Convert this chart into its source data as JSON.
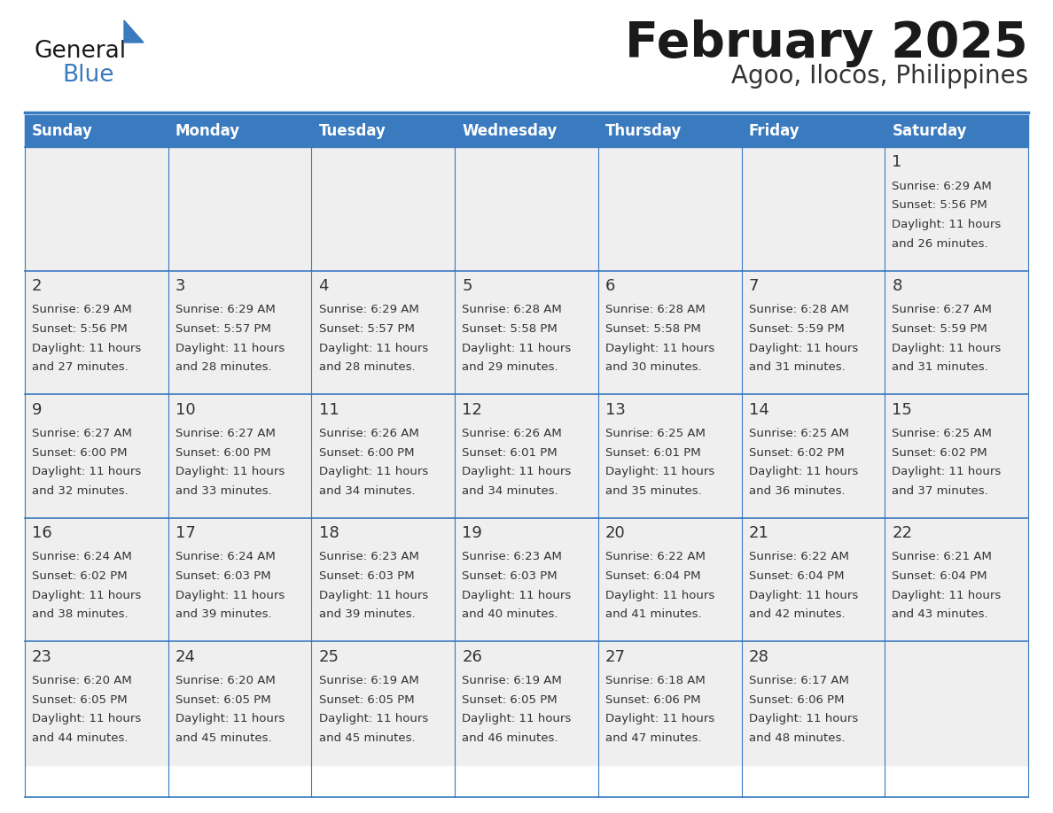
{
  "title": "February 2025",
  "subtitle": "Agoo, Ilocos, Philippines",
  "header_bg_color": "#3a7abf",
  "header_text_color": "#ffffff",
  "cell_bg_color": "#efefef",
  "cell_bg_color2": "#ffffff",
  "cell_text_color": "#333333",
  "day_num_color": "#333333",
  "border_color": "#3a7abf",
  "days_of_week": [
    "Sunday",
    "Monday",
    "Tuesday",
    "Wednesday",
    "Thursday",
    "Friday",
    "Saturday"
  ],
  "weeks": [
    [
      {
        "day": "",
        "sunrise": "",
        "sunset": "",
        "daylight": ""
      },
      {
        "day": "",
        "sunrise": "",
        "sunset": "",
        "daylight": ""
      },
      {
        "day": "",
        "sunrise": "",
        "sunset": "",
        "daylight": ""
      },
      {
        "day": "",
        "sunrise": "",
        "sunset": "",
        "daylight": ""
      },
      {
        "day": "",
        "sunrise": "",
        "sunset": "",
        "daylight": ""
      },
      {
        "day": "",
        "sunrise": "",
        "sunset": "",
        "daylight": ""
      },
      {
        "day": "1",
        "sunrise": "6:29 AM",
        "sunset": "5:56 PM",
        "daylight": "11 hours and 26 minutes."
      }
    ],
    [
      {
        "day": "2",
        "sunrise": "6:29 AM",
        "sunset": "5:56 PM",
        "daylight": "11 hours and 27 minutes."
      },
      {
        "day": "3",
        "sunrise": "6:29 AM",
        "sunset": "5:57 PM",
        "daylight": "11 hours and 28 minutes."
      },
      {
        "day": "4",
        "sunrise": "6:29 AM",
        "sunset": "5:57 PM",
        "daylight": "11 hours and 28 minutes."
      },
      {
        "day": "5",
        "sunrise": "6:28 AM",
        "sunset": "5:58 PM",
        "daylight": "11 hours and 29 minutes."
      },
      {
        "day": "6",
        "sunrise": "6:28 AM",
        "sunset": "5:58 PM",
        "daylight": "11 hours and 30 minutes."
      },
      {
        "day": "7",
        "sunrise": "6:28 AM",
        "sunset": "5:59 PM",
        "daylight": "11 hours and 31 minutes."
      },
      {
        "day": "8",
        "sunrise": "6:27 AM",
        "sunset": "5:59 PM",
        "daylight": "11 hours and 31 minutes."
      }
    ],
    [
      {
        "day": "9",
        "sunrise": "6:27 AM",
        "sunset": "6:00 PM",
        "daylight": "11 hours and 32 minutes."
      },
      {
        "day": "10",
        "sunrise": "6:27 AM",
        "sunset": "6:00 PM",
        "daylight": "11 hours and 33 minutes."
      },
      {
        "day": "11",
        "sunrise": "6:26 AM",
        "sunset": "6:00 PM",
        "daylight": "11 hours and 34 minutes."
      },
      {
        "day": "12",
        "sunrise": "6:26 AM",
        "sunset": "6:01 PM",
        "daylight": "11 hours and 34 minutes."
      },
      {
        "day": "13",
        "sunrise": "6:25 AM",
        "sunset": "6:01 PM",
        "daylight": "11 hours and 35 minutes."
      },
      {
        "day": "14",
        "sunrise": "6:25 AM",
        "sunset": "6:02 PM",
        "daylight": "11 hours and 36 minutes."
      },
      {
        "day": "15",
        "sunrise": "6:25 AM",
        "sunset": "6:02 PM",
        "daylight": "11 hours and 37 minutes."
      }
    ],
    [
      {
        "day": "16",
        "sunrise": "6:24 AM",
        "sunset": "6:02 PM",
        "daylight": "11 hours and 38 minutes."
      },
      {
        "day": "17",
        "sunrise": "6:24 AM",
        "sunset": "6:03 PM",
        "daylight": "11 hours and 39 minutes."
      },
      {
        "day": "18",
        "sunrise": "6:23 AM",
        "sunset": "6:03 PM",
        "daylight": "11 hours and 39 minutes."
      },
      {
        "day": "19",
        "sunrise": "6:23 AM",
        "sunset": "6:03 PM",
        "daylight": "11 hours and 40 minutes."
      },
      {
        "day": "20",
        "sunrise": "6:22 AM",
        "sunset": "6:04 PM",
        "daylight": "11 hours and 41 minutes."
      },
      {
        "day": "21",
        "sunrise": "6:22 AM",
        "sunset": "6:04 PM",
        "daylight": "11 hours and 42 minutes."
      },
      {
        "day": "22",
        "sunrise": "6:21 AM",
        "sunset": "6:04 PM",
        "daylight": "11 hours and 43 minutes."
      }
    ],
    [
      {
        "day": "23",
        "sunrise": "6:20 AM",
        "sunset": "6:05 PM",
        "daylight": "11 hours and 44 minutes."
      },
      {
        "day": "24",
        "sunrise": "6:20 AM",
        "sunset": "6:05 PM",
        "daylight": "11 hours and 45 minutes."
      },
      {
        "day": "25",
        "sunrise": "6:19 AM",
        "sunset": "6:05 PM",
        "daylight": "11 hours and 45 minutes."
      },
      {
        "day": "26",
        "sunrise": "6:19 AM",
        "sunset": "6:05 PM",
        "daylight": "11 hours and 46 minutes."
      },
      {
        "day": "27",
        "sunrise": "6:18 AM",
        "sunset": "6:06 PM",
        "daylight": "11 hours and 47 minutes."
      },
      {
        "day": "28",
        "sunrise": "6:17 AM",
        "sunset": "6:06 PM",
        "daylight": "11 hours and 48 minutes."
      },
      {
        "day": "",
        "sunrise": "",
        "sunset": "",
        "daylight": ""
      }
    ]
  ],
  "logo_text_general": "General",
  "logo_text_blue": "Blue",
  "logo_triangle_color": "#3a7abf",
  "title_fontsize": 40,
  "subtitle_fontsize": 20,
  "dow_fontsize": 12,
  "day_num_fontsize": 13,
  "cell_fontsize": 9.5,
  "fig_width": 11.88,
  "fig_height": 9.18,
  "fig_dpi": 100
}
